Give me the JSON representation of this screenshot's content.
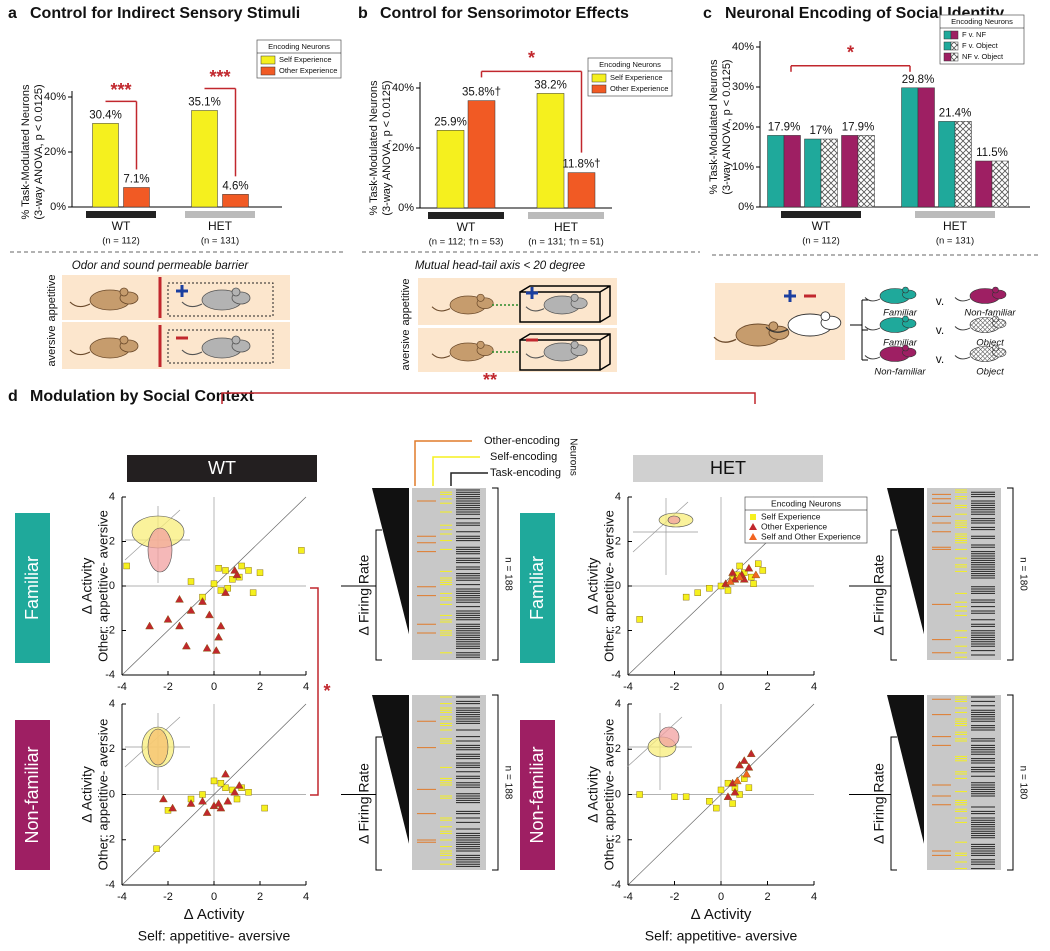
{
  "chart_data": [
    {
      "type": "bar",
      "panel": "a",
      "title": "Control for Indirect Sensory Stimuli",
      "ylabel": [
        "% Task-Modulated Neurons",
        "(3-way ANOVA, p < 0.0125)"
      ],
      "ylim": [
        0,
        40
      ],
      "yticks": [
        {
          "value": 0,
          "label": "0%"
        },
        {
          "value": 20,
          "label": "20%"
        },
        {
          "value": 40,
          "label": "40%"
        }
      ],
      "categories": [
        "WT",
        "HET"
      ],
      "category_notes": [
        "(n = 112)",
        "(n = 131)"
      ],
      "legend_title": "Encoding Neurons",
      "series": [
        {
          "name": "Self Experience",
          "color": "#f5f01e",
          "values": [
            30.4,
            35.1
          ],
          "value_labels": [
            "30.4%",
            "35.1%"
          ]
        },
        {
          "name": "Other Experience",
          "color": "#f15a24",
          "values": [
            7.1,
            4.6
          ],
          "value_labels": [
            "7.1%",
            "4.6%"
          ]
        }
      ],
      "significance": [
        "***",
        "***"
      ],
      "note": "Odor and sound permeable barrier",
      "conditions": [
        "appetitive",
        "aversive"
      ]
    },
    {
      "type": "bar",
      "panel": "b",
      "title": "Control for Sensorimotor Effects",
      "ylabel": [
        "% Task-Modulated Neurons",
        "(3-way ANOVA, p < 0.0125)"
      ],
      "ylim": [
        0,
        40
      ],
      "yticks": [
        {
          "value": 0,
          "label": "0%"
        },
        {
          "value": 20,
          "label": "20%"
        },
        {
          "value": 40,
          "label": "40%"
        }
      ],
      "categories": [
        "WT",
        "HET"
      ],
      "category_notes": [
        "(n = 112; †n = 53)",
        "(n = 131; †n = 51)"
      ],
      "legend_title": "Encoding Neurons",
      "series": [
        {
          "name": "Self Experience",
          "color": "#f5f01e",
          "values": [
            25.9,
            38.2
          ],
          "value_labels": [
            "25.9%",
            "38.2%"
          ]
        },
        {
          "name": "Other Experience",
          "color": "#f15a24",
          "values": [
            35.8,
            11.8
          ],
          "value_labels": [
            "35.8%†",
            "11.8%†"
          ]
        }
      ],
      "significance": [
        "*"
      ],
      "note": "Mutual head-tail axis < 20 degree",
      "conditions": [
        "appetitive",
        "aversive"
      ]
    },
    {
      "type": "bar",
      "panel": "c",
      "title": "Neuronal Encoding of Social Identity",
      "ylabel": [
        "% Task-Modulated Neurons",
        "(3-way ANOVA, p < 0.0125)"
      ],
      "ylim": [
        0,
        40
      ],
      "yticks": [
        {
          "value": 0,
          "label": "0%"
        },
        {
          "value": 10,
          "label": "10%"
        },
        {
          "value": 20,
          "label": "20%"
        },
        {
          "value": 30,
          "label": "30%"
        },
        {
          "value": 40,
          "label": "40%"
        }
      ],
      "categories": [
        "WT",
        "HET"
      ],
      "category_notes": [
        "(n = 112)",
        "(n = 131)"
      ],
      "legend_title": "Encoding Neurons",
      "series": [
        {
          "name": "F v. NF",
          "color": "#1fa99b",
          "right": "#9e1f63",
          "values": [
            17.9,
            29.8
          ],
          "value_labels": [
            "17.9%",
            "29.8%"
          ]
        },
        {
          "name": "F v. Object",
          "color": "#1fa99b",
          "right": "crosshatch",
          "values": [
            17,
            21.4
          ],
          "value_labels": [
            "17%",
            "21.4%"
          ]
        },
        {
          "name": "NF v. Object",
          "color": "#9e1f63",
          "right": "crosshatch",
          "values": [
            17.9,
            11.5
          ],
          "value_labels": [
            "17.9%",
            "11.5%"
          ]
        }
      ],
      "significance": [
        "*"
      ],
      "comparisons": [
        [
          "Familiar",
          "v.",
          "Non-familiar"
        ],
        [
          "Familiar",
          "v.",
          "Object"
        ],
        [
          "Non-familiar",
          "v.",
          "Object"
        ]
      ]
    },
    {
      "type": "scatter",
      "condition": "Familiar",
      "ylabel": [
        "Δ Activity",
        "Other: appetitive- aversive"
      ],
      "xlim": [
        -4,
        4
      ],
      "ylim": [
        -4,
        4
      ],
      "xticks": [
        -4,
        -2,
        0,
        2,
        4
      ],
      "yticks": [
        -4,
        -2,
        0,
        2,
        4
      ],
      "series": [
        {
          "color": "#f5f01e",
          "marker": "square",
          "x": [
            -3.8,
            3.8,
            0.5,
            1.2,
            1.5,
            0.8,
            -1,
            0,
            0.3,
            1.7,
            0.2,
            -0.5,
            1.1,
            0.6,
            2
          ],
          "y": [
            0.9,
            1.6,
            0.7,
            0.9,
            0.7,
            0.3,
            0.2,
            0.1,
            -0.2,
            -0.3,
            0.8,
            -0.5,
            0.4,
            -0.1,
            0.6
          ]
        },
        {
          "color": "#c1272d",
          "marker": "triangle",
          "x": [
            -2.8,
            -2,
            -1.5,
            -1.2,
            -1,
            -0.5,
            -0.2,
            0.2,
            0.3,
            0.1,
            0.5,
            0.9,
            1,
            -1.5,
            -0.3
          ],
          "y": [
            -1.8,
            -1.5,
            -1.8,
            -2.7,
            -1.1,
            -0.7,
            -1.3,
            -2.3,
            -1.8,
            -2.9,
            -0.3,
            0.7,
            0.5,
            -0.6,
            -2.8
          ]
        }
      ],
      "raster": {
        "label": "Δ Firing Rate",
        "n": "n = 188"
      }
    },
    {
      "type": "scatter",
      "condition": "Non-familiar",
      "ylabel": [
        "Δ Activity",
        "Other: appetitive- aversive"
      ],
      "xlabel": [
        "Δ Activity",
        "Self: appetitive- aversive"
      ],
      "xlim": [
        -4,
        4
      ],
      "ylim": [
        -4,
        4
      ],
      "xticks": [
        -4,
        -2,
        0,
        2,
        4
      ],
      "yticks": [
        -4,
        -2,
        0,
        2,
        4
      ],
      "series": [
        {
          "color": "#f5f01e",
          "marker": "square",
          "x": [
            -2.5,
            -2,
            0,
            0.5,
            1,
            1.5,
            2.2,
            1.2,
            -0.5,
            0.3,
            -1,
            0.8
          ],
          "y": [
            -2.4,
            -0.7,
            0.6,
            0.3,
            -0.2,
            0.1,
            -0.6,
            0.3,
            0,
            0.5,
            -0.2,
            0.2
          ]
        },
        {
          "color": "#c1272d",
          "marker": "triangle",
          "x": [
            -2.2,
            -1.8,
            -1,
            -0.5,
            0,
            0.3,
            0.5,
            0.9,
            -0.3,
            0.2,
            1.1,
            0.6
          ],
          "y": [
            -0.2,
            -0.6,
            -0.4,
            -0.3,
            -0.5,
            -0.6,
            0.9,
            0.1,
            -0.8,
            -0.4,
            0.4,
            -0.3
          ]
        }
      ],
      "raster": {
        "label": "Δ Firing Rate",
        "n": "n = 188"
      }
    },
    {
      "type": "scatter",
      "condition": "Familiar",
      "ylabel": [
        "Δ Activity",
        "Other: appetitive- aversive"
      ],
      "xlim": [
        -4,
        4
      ],
      "ylim": [
        -4,
        4
      ],
      "xticks": [
        -4,
        -2,
        0,
        2,
        4
      ],
      "yticks": [
        -4,
        -2,
        0,
        2,
        4
      ],
      "legend_title": "Encoding Neurons",
      "series": [
        {
          "name": "Self Experience",
          "color": "#f5f01e",
          "marker": "square",
          "x": [
            -3.5,
            -1.5,
            -0.5,
            0,
            0.5,
            1,
            1.3,
            1.6,
            1.8,
            0.8,
            0.3,
            -1,
            1.4,
            0.7
          ],
          "y": [
            -1.5,
            -0.5,
            -0.1,
            0,
            0.3,
            0.6,
            0.4,
            1,
            0.7,
            0.9,
            -0.2,
            -0.3,
            0.1,
            0.5
          ]
        },
        {
          "name": "Other Experience",
          "color": "#c1272d",
          "marker": "triangle",
          "x": [
            0.2,
            0.5,
            0.9,
            1.2,
            0.6,
            1
          ],
          "y": [
            0.1,
            0.6,
            0.5,
            0.8,
            0.3,
            0.3
          ]
        },
        {
          "name": "Self and Other Experience",
          "color": "#f26522",
          "marker": "triangle",
          "x": [
            0.8,
            0.4,
            1.5
          ],
          "y": [
            0.4,
            0.2,
            0.5
          ]
        }
      ],
      "raster": {
        "label": "Δ Firing Rate",
        "n": "n = 180"
      }
    },
    {
      "type": "scatter",
      "condition": "Non-familiar",
      "ylabel": [
        "Δ Activity",
        "Other: appetitive- aversive"
      ],
      "xlabel": [
        "Δ Activity",
        "Self: appetitive- aversive"
      ],
      "xlim": [
        -4,
        4
      ],
      "ylim": [
        -4,
        4
      ],
      "xticks": [
        -4,
        -2,
        0,
        2,
        4
      ],
      "yticks": [
        -4,
        -2,
        0,
        2,
        4
      ],
      "series": [
        {
          "color": "#f5f01e",
          "marker": "square",
          "x": [
            -3.5,
            -2,
            -1.5,
            -0.5,
            0,
            0.5,
            0.8,
            1,
            1.2,
            0.3,
            -0.2,
            0.6
          ],
          "y": [
            0,
            -0.1,
            -0.1,
            -0.3,
            0.2,
            -0.4,
            0,
            0.7,
            0.3,
            0.5,
            -0.6,
            0.3
          ]
        },
        {
          "color": "#c1272d",
          "marker": "triangle",
          "x": [
            0.5,
            0.8,
            1.2,
            1.3,
            1,
            0.6,
            0.3
          ],
          "y": [
            0.5,
            1.3,
            1.2,
            1.8,
            1.5,
            0.1,
            -0.1
          ]
        },
        {
          "color": "#f26522",
          "marker": "triangle",
          "x": [
            0.7,
            1.1
          ],
          "y": [
            0.6,
            0.9
          ]
        }
      ],
      "raster": {
        "label": "Δ Firing Rate",
        "n": "n = 180"
      }
    }
  ],
  "figure": {
    "letter_d": "d",
    "title_d": "Modulation by Social Context",
    "genotypes": [
      "WT",
      "HET"
    ],
    "significance_genotype": "**",
    "significance_context": "*",
    "neuron_types": [
      {
        "name": "Other-encoding",
        "color": "#e07b2a"
      },
      {
        "name": "Self-encoding",
        "color": "#f5f01e"
      },
      {
        "name": "Task-encoding",
        "color": "#222222"
      }
    ],
    "neuron_legend_title": "Neurons"
  }
}
